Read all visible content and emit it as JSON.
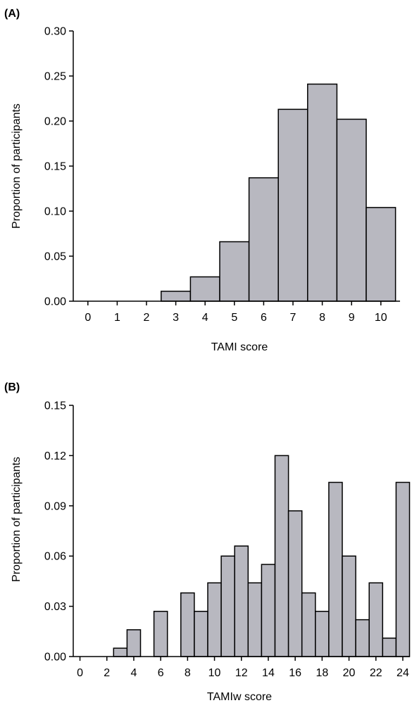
{
  "bar_fill": "#b8b8c0",
  "bar_stroke": "#000000",
  "chart_data": [
    {
      "type": "bar",
      "panel_label": "(A)",
      "xlabel": "TAMI score",
      "ylabel": "Proportion of participants",
      "ylim": [
        0,
        0.3
      ],
      "yticks": [
        "0.00",
        "0.05",
        "0.10",
        "0.15",
        "0.20",
        "0.25",
        "0.30"
      ],
      "categories": [
        "0",
        "1",
        "2",
        "3",
        "4",
        "5",
        "6",
        "7",
        "8",
        "9",
        "10"
      ],
      "values": [
        0,
        0,
        0,
        0.011,
        0.027,
        0.066,
        0.137,
        0.213,
        0.241,
        0.202,
        0.104
      ]
    },
    {
      "type": "bar",
      "panel_label": "(B)",
      "xlabel": "TAMIw score",
      "ylabel": "Proportion of participants",
      "ylim": [
        0,
        0.15
      ],
      "yticks": [
        "0.00",
        "0.03",
        "0.06",
        "0.09",
        "0.12",
        "0.15"
      ],
      "categories": [
        "0",
        "1",
        "2",
        "3",
        "4",
        "5",
        "6",
        "7",
        "8",
        "9",
        "10",
        "11",
        "12",
        "13",
        "14",
        "15",
        "16",
        "17",
        "18",
        "19",
        "20",
        "21",
        "22",
        "23",
        "24"
      ],
      "xticks_shown": [
        "0",
        "2",
        "4",
        "6",
        "8",
        "10",
        "12",
        "14",
        "16",
        "18",
        "20",
        "22",
        "24"
      ],
      "values": [
        0,
        0,
        0,
        0.005,
        0.016,
        0,
        0.027,
        0,
        0.038,
        0.027,
        0.044,
        0.06,
        0.066,
        0.044,
        0.055,
        0.12,
        0.087,
        0.038,
        0.027,
        0.104,
        0.06,
        0.022,
        0.044,
        0.011,
        0.104
      ]
    }
  ]
}
